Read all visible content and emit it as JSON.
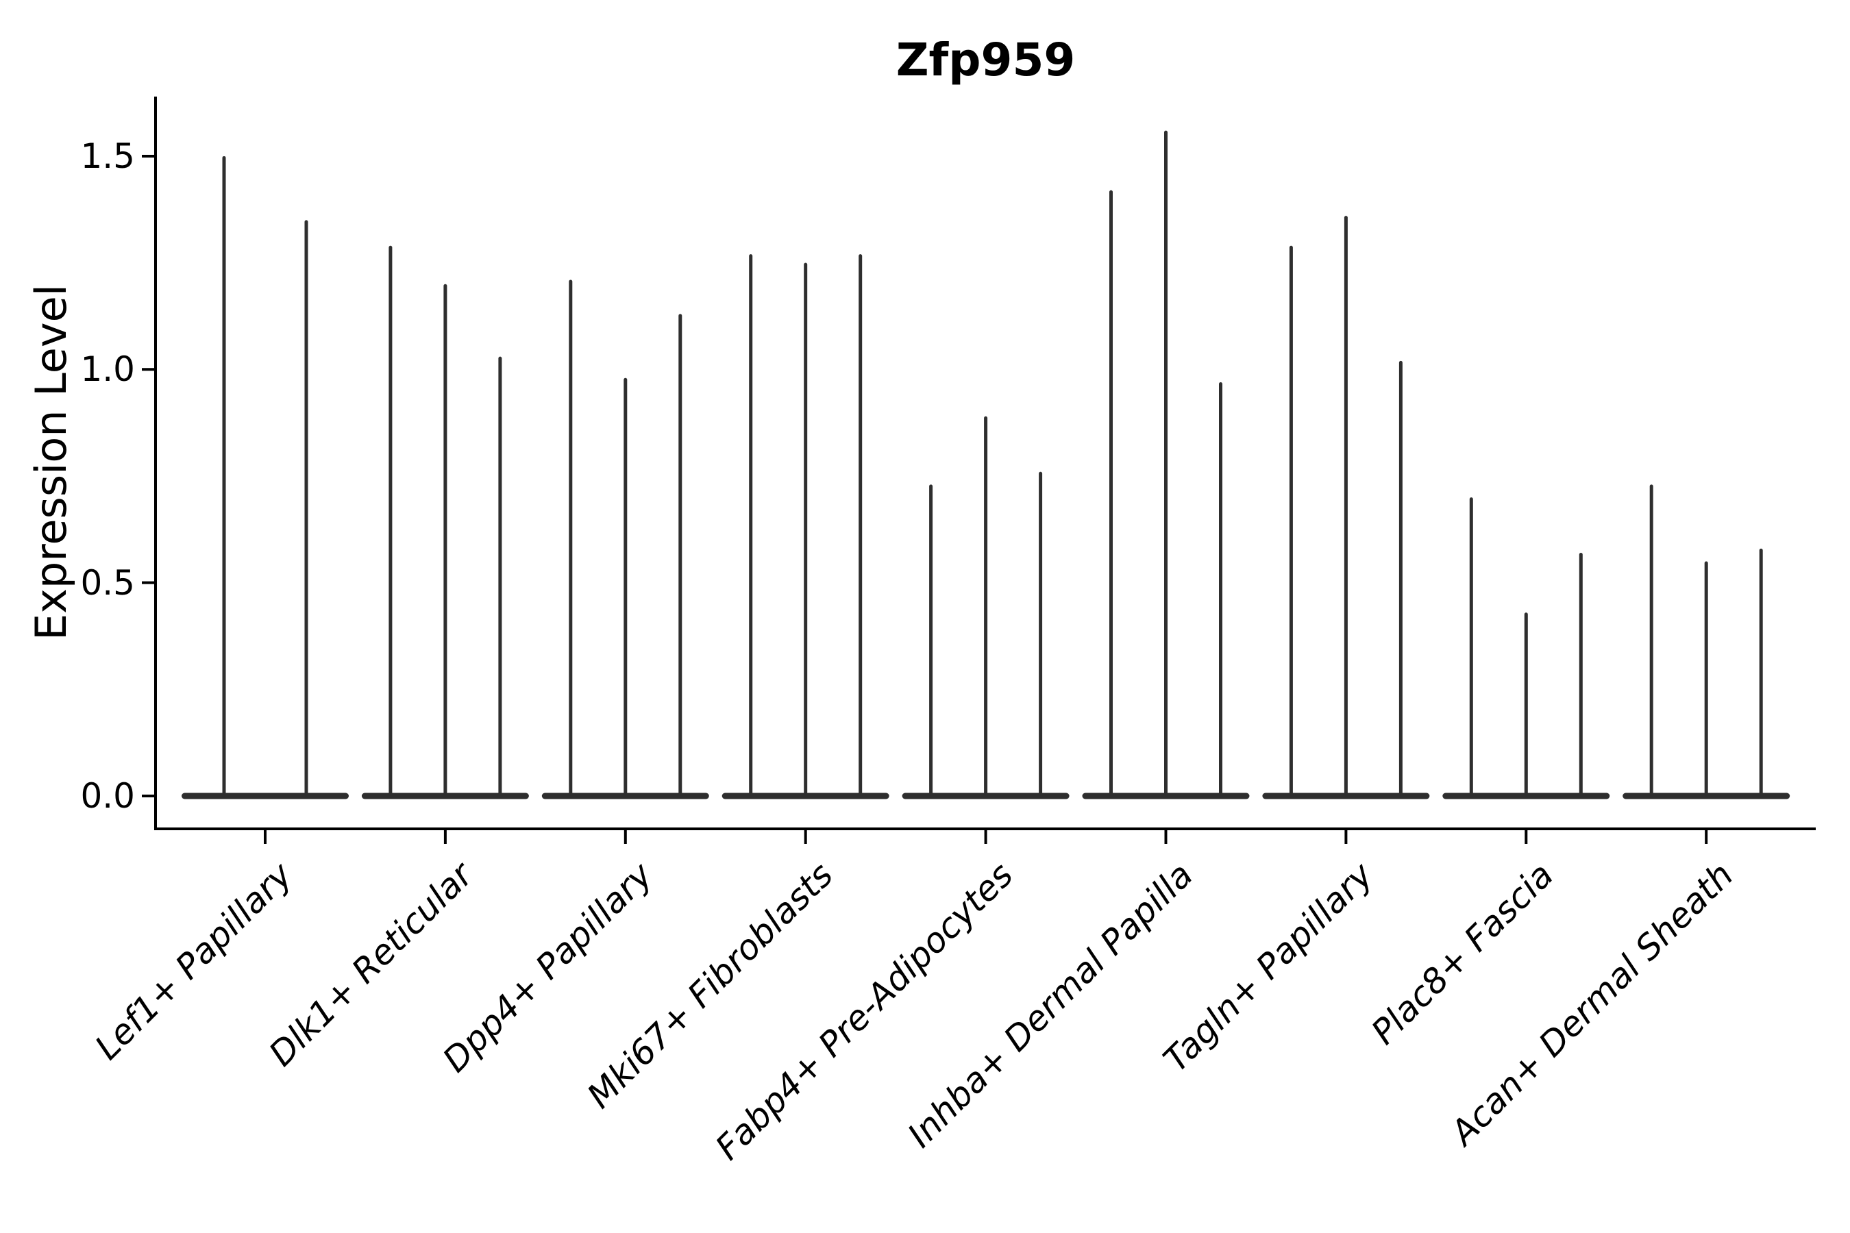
{
  "figure": {
    "title": "Zfp959",
    "ylabel": "Expression Level"
  },
  "colors": {
    "violin": "#2e2e2e",
    "axis": "#000000",
    "background": "#ffffff"
  },
  "chart_data": {
    "type": "violin",
    "title": "Zfp959",
    "xlabel": "",
    "ylabel": "Expression Level",
    "y_ticks": [
      0.0,
      0.5,
      1.0,
      1.5
    ],
    "ylim": [
      -0.08,
      1.64
    ],
    "grid": false,
    "legend": "none",
    "categories": [
      "Lef1+ Papillary",
      "Dlk1+ Reticular",
      "Dpp4+ Papillary",
      "Mki67+ Fibroblasts",
      "Fabp4+ Pre-Adipocytes",
      "Inhba+ Dermal Papilla",
      "Tagln+ Papillary",
      "Plac8+ Fascia",
      "Acan+ Dermal Sheath"
    ],
    "series": [
      {
        "category": "Lef1+ Papillary",
        "violin_max": [
          1.5,
          1.35
        ]
      },
      {
        "category": "Dlk1+ Reticular",
        "violin_max": [
          1.29,
          1.2,
          1.03
        ]
      },
      {
        "category": "Dpp4+ Papillary",
        "violin_max": [
          1.21,
          0.98,
          1.13
        ]
      },
      {
        "category": "Mki67+ Fibroblasts",
        "violin_max": [
          1.27,
          1.25,
          1.27
        ]
      },
      {
        "category": "Fabp4+ Pre-Adipocytes",
        "violin_max": [
          0.73,
          0.89,
          0.76
        ]
      },
      {
        "category": "Inhba+ Dermal Papilla",
        "violin_max": [
          1.42,
          1.56,
          0.97
        ]
      },
      {
        "category": "Tagln+ Papillary",
        "violin_max": [
          1.29,
          1.36,
          1.02
        ]
      },
      {
        "category": "Plac8+ Fascia",
        "violin_max": [
          0.7,
          0.43,
          0.57
        ]
      },
      {
        "category": "Acan+ Dermal Sheath",
        "violin_max": [
          0.73,
          0.55,
          0.58
        ]
      }
    ]
  }
}
